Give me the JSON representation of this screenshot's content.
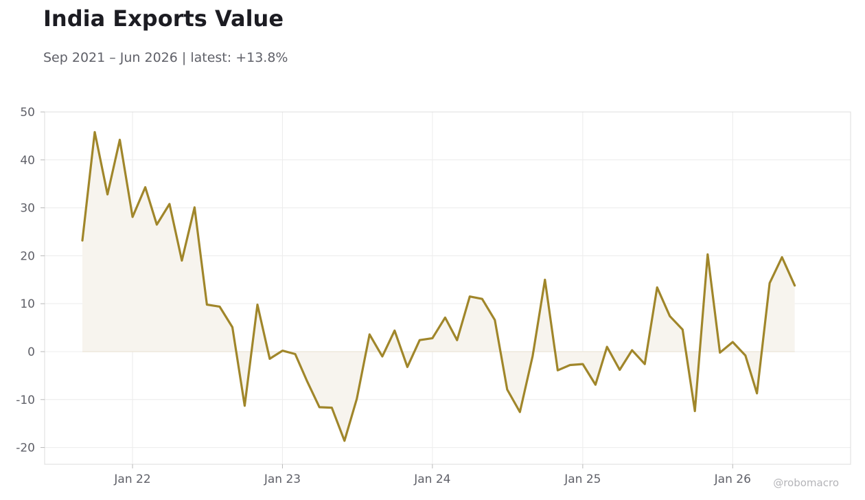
{
  "header": {
    "title": "India Exports Value",
    "subtitle": "Sep 2021 – Jun 2026 | latest: +13.8%"
  },
  "credit": "@robomacro",
  "colors": {
    "line": "#a0862a",
    "fill": "#f7f4ee",
    "grid": "#ececec",
    "frame": "#dcdcdc",
    "tick_text": "#5f6068"
  },
  "chart_data": {
    "type": "area",
    "title": "India Exports Value",
    "subtitle": "Sep 2021 – Jun 2026 | latest: +13.8%",
    "xlabel": "",
    "ylabel": "",
    "ylim": [
      -23.5,
      50
    ],
    "xlim": [
      "2021-06-01",
      "2026-10-15"
    ],
    "grid": true,
    "legend": "none",
    "y_ticks": [
      50,
      40,
      30,
      20,
      10,
      0,
      -10,
      -20
    ],
    "y_tick_labels": [
      "50",
      "40",
      "30",
      "20",
      "10",
      "0",
      "-10",
      "-20"
    ],
    "x_ticks": [
      "2022-01-01",
      "2023-01-01",
      "2024-01-01",
      "2025-01-01",
      "2026-01-01"
    ],
    "x_tick_labels": [
      "Jan 22",
      "Jan 23",
      "Jan 24",
      "Jan 25",
      "Jan 26"
    ],
    "series": [
      {
        "x": [
          "2021-09",
          "2021-10",
          "2021-11",
          "2021-12",
          "2022-01",
          "2022-02",
          "2022-03",
          "2022-04",
          "2022-05",
          "2022-06",
          "2022-07",
          "2022-08",
          "2022-09",
          "2022-10",
          "2022-11",
          "2022-12",
          "2023-01",
          "2023-02",
          "2023-03",
          "2023-04",
          "2023-05",
          "2023-06",
          "2023-07",
          "2023-08",
          "2023-09",
          "2023-10",
          "2023-11",
          "2023-12",
          "2024-01",
          "2024-02",
          "2024-03",
          "2024-04",
          "2024-05",
          "2024-06",
          "2024-07",
          "2024-08",
          "2024-09",
          "2024-10",
          "2024-11",
          "2024-12",
          "2025-01",
          "2025-02",
          "2025-03",
          "2025-04",
          "2025-05",
          "2025-06",
          "2025-07",
          "2025-08",
          "2025-09",
          "2025-10",
          "2025-11",
          "2025-12",
          "2026-01",
          "2026-02",
          "2026-03",
          "2026-04",
          "2026-05",
          "2026-06"
        ],
        "values": [
          23.2,
          45.8,
          32.8,
          44.2,
          28.1,
          34.3,
          26.5,
          30.8,
          19.0,
          30.1,
          9.8,
          9.4,
          5.1,
          -11.3,
          9.8,
          -1.5,
          0.2,
          -0.5,
          -6.0,
          -11.6,
          -11.7,
          -18.6,
          -9.8,
          3.6,
          -1.0,
          4.4,
          -3.2,
          2.4,
          2.8,
          7.1,
          2.4,
          11.5,
          11.0,
          6.6,
          -7.9,
          -12.6,
          -0.9,
          15.0,
          -3.9,
          -2.8,
          -2.6,
          -6.9,
          1.0,
          -3.8,
          0.3,
          -2.6,
          13.4,
          7.4,
          4.6,
          -12.4,
          20.3,
          -0.2,
          2.0,
          -0.8,
          -8.7,
          14.3,
          19.7,
          13.8
        ]
      }
    ]
  }
}
